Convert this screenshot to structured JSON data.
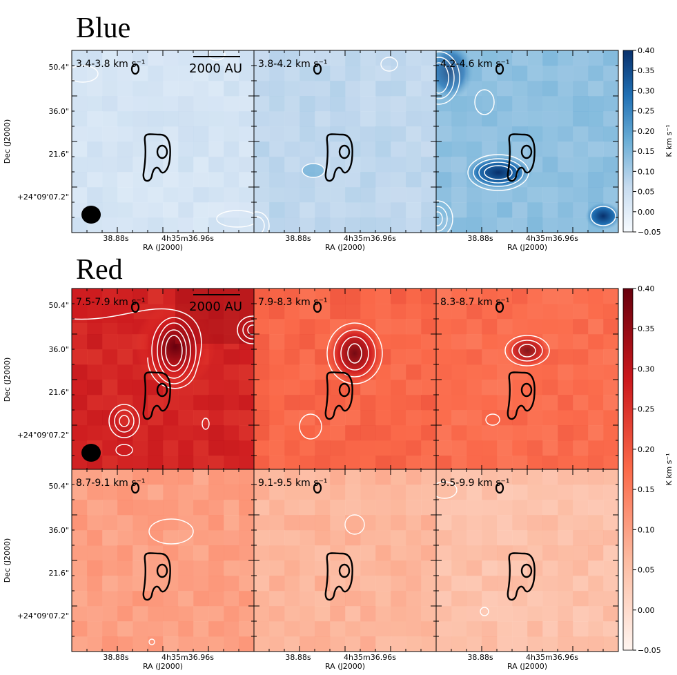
{
  "figure": {
    "blue_title": "Blue",
    "red_title": "Red",
    "scalebar_text": "2000 AU",
    "ra_axis_label": "RA (J2000)",
    "dec_axis_label": "Dec (J2000)",
    "colorbar_label": "K km s⁻¹",
    "ra_ticks": [
      "38.88s",
      "4h35m36.96s"
    ],
    "dec_ticks": [
      "50.4\"",
      "36.0\"",
      "21.6\"",
      "+24°09'07.2\""
    ]
  },
  "chart_data": [
    {
      "type": "heatmap",
      "name": "Blue-shifted channel maps",
      "colormap": "Blues",
      "colorbar": {
        "min": -0.05,
        "max": 0.4,
        "ticks": [
          "0.40",
          "0.35",
          "0.30",
          "0.25",
          "0.20",
          "0.15",
          "0.10",
          "0.05",
          "0.00",
          "−0.05"
        ]
      },
      "panels": [
        {
          "label": "3.4-3.8 km s⁻¹",
          "level": 0.03
        },
        {
          "label": "3.8-4.2 km s⁻¹",
          "level": 0.07
        },
        {
          "label": "4.2-4.6 km s⁻¹",
          "level": 0.13
        }
      ]
    },
    {
      "type": "heatmap",
      "name": "Red-shifted channel maps",
      "colormap": "Reds",
      "colorbar": {
        "min": -0.05,
        "max": 0.4,
        "ticks": [
          "0.40",
          "0.35",
          "0.30",
          "0.25",
          "0.20",
          "0.15",
          "0.10",
          "0.05",
          "0.00",
          "−0.05"
        ]
      },
      "panels": [
        {
          "label": "7.5-7.9 km s⁻¹",
          "level": 0.27
        },
        {
          "label": "7.9-8.3 km s⁻¹",
          "level": 0.18
        },
        {
          "label": "8.3-8.7 km s⁻¹",
          "level": 0.17
        },
        {
          "label": "8.7-9.1 km s⁻¹",
          "level": 0.1
        },
        {
          "label": "9.1-9.5 km s⁻¹",
          "level": 0.07
        },
        {
          "label": "9.5-9.9 km s⁻¹",
          "level": 0.05
        }
      ]
    }
  ],
  "colors": {
    "blue_low": "#f7fbff",
    "blue_mid": "#9ecae1",
    "blue_high": "#08306b",
    "red_low": "#fff5f0",
    "red_mid": "#fb6a4a",
    "red_high": "#67000d"
  }
}
